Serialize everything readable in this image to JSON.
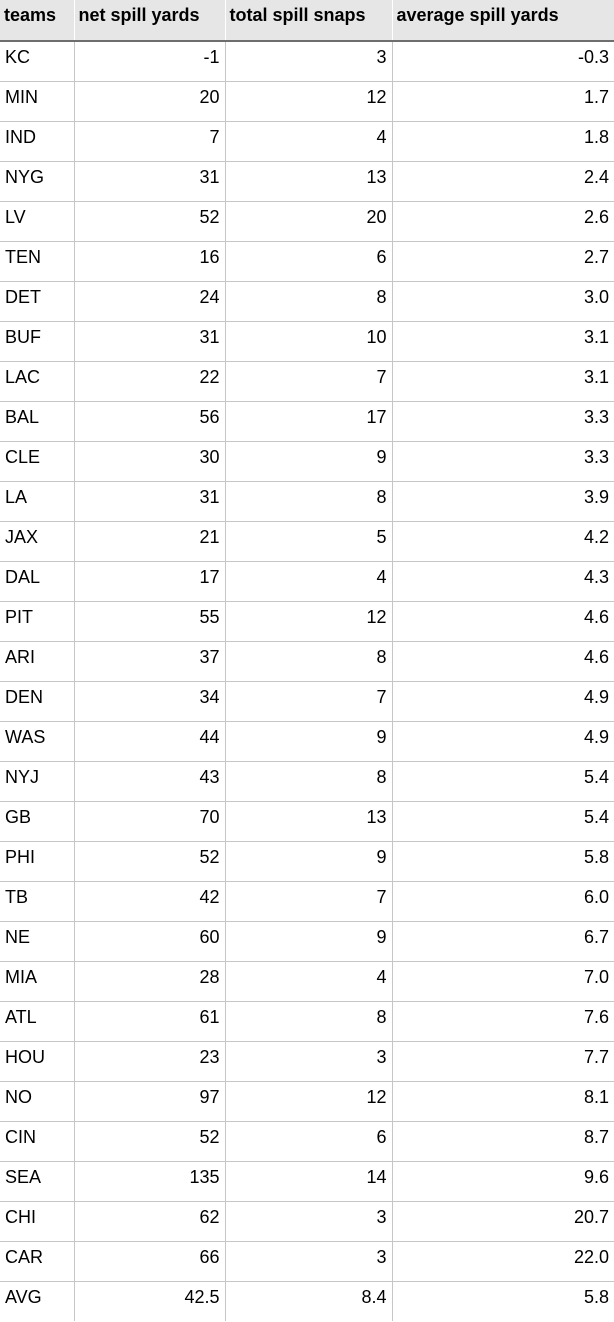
{
  "table": {
    "headers": [
      "teams",
      "net spill yards",
      "total spill snaps",
      "average spill yards"
    ],
    "rows": [
      [
        "KC",
        "-1",
        "3",
        "-0.3"
      ],
      [
        "MIN",
        "20",
        "12",
        "1.7"
      ],
      [
        "IND",
        "7",
        "4",
        "1.8"
      ],
      [
        "NYG",
        "31",
        "13",
        "2.4"
      ],
      [
        "LV",
        "52",
        "20",
        "2.6"
      ],
      [
        "TEN",
        "16",
        "6",
        "2.7"
      ],
      [
        "DET",
        "24",
        "8",
        "3.0"
      ],
      [
        "BUF",
        "31",
        "10",
        "3.1"
      ],
      [
        "LAC",
        "22",
        "7",
        "3.1"
      ],
      [
        "BAL",
        "56",
        "17",
        "3.3"
      ],
      [
        "CLE",
        "30",
        "9",
        "3.3"
      ],
      [
        "LA",
        "31",
        "8",
        "3.9"
      ],
      [
        "JAX",
        "21",
        "5",
        "4.2"
      ],
      [
        "DAL",
        "17",
        "4",
        "4.3"
      ],
      [
        "PIT",
        "55",
        "12",
        "4.6"
      ],
      [
        "ARI",
        "37",
        "8",
        "4.6"
      ],
      [
        "DEN",
        "34",
        "7",
        "4.9"
      ],
      [
        "WAS",
        "44",
        "9",
        "4.9"
      ],
      [
        "NYJ",
        "43",
        "8",
        "5.4"
      ],
      [
        "GB",
        "70",
        "13",
        "5.4"
      ],
      [
        "PHI",
        "52",
        "9",
        "5.8"
      ],
      [
        "TB",
        "42",
        "7",
        "6.0"
      ],
      [
        "NE",
        "60",
        "9",
        "6.7"
      ],
      [
        "MIA",
        "28",
        "4",
        "7.0"
      ],
      [
        "ATL",
        "61",
        "8",
        "7.6"
      ],
      [
        "HOU",
        "23",
        "3",
        "7.7"
      ],
      [
        "NO",
        "97",
        "12",
        "8.1"
      ],
      [
        "CIN",
        "52",
        "6",
        "8.7"
      ],
      [
        "SEA",
        "135",
        "14",
        "9.6"
      ],
      [
        "CHI",
        "62",
        "3",
        "20.7"
      ],
      [
        "CAR",
        "66",
        "3",
        "22.0"
      ]
    ],
    "summary": [
      "AVG",
      "42.5",
      "8.4",
      "5.8"
    ]
  },
  "colors": {
    "header_bg": "#e6e6e6",
    "header_rule": "#6e6e6e",
    "grid_line": "#c6c6c6",
    "cell_bg": "#ffffff",
    "text": "#000000"
  }
}
